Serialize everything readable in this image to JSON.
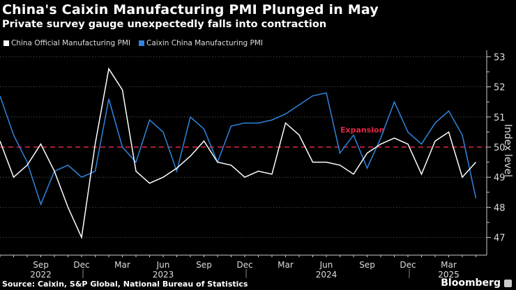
{
  "title": "China's Caixin Manufacturing PMI Plunged in May",
  "subtitle": "Private survey gauge unexpectedly falls into contraction",
  "source": "Source: Caixin, S&P Global, National Bureau of Statistics",
  "brand": "Bloomberg",
  "chart_data": {
    "type": "line",
    "ylabel": "Index level",
    "ylim": [
      47,
      53
    ],
    "yticks": [
      "47",
      "48",
      "49",
      "50",
      "51",
      "52",
      "53"
    ],
    "grid": true,
    "legend_position": "top-left",
    "x": [
      "2022-06",
      "2022-07",
      "2022-08",
      "2022-09",
      "2022-10",
      "2022-11",
      "2022-12",
      "2023-01",
      "2023-02",
      "2023-03",
      "2023-04",
      "2023-05",
      "2023-06",
      "2023-07",
      "2023-08",
      "2023-09",
      "2023-10",
      "2023-11",
      "2023-12",
      "2024-01",
      "2024-02",
      "2024-03",
      "2024-04",
      "2024-05",
      "2024-06",
      "2024-07",
      "2024-08",
      "2024-09",
      "2024-10",
      "2024-11",
      "2024-12",
      "2025-01",
      "2025-02",
      "2025-03",
      "2025-04",
      "2025-05"
    ],
    "xticks": [
      {
        "month": "Sep",
        "year": "2022",
        "index": 3
      },
      {
        "month": "Dec",
        "year": "",
        "index": 6
      },
      {
        "month": "Mar",
        "year": "",
        "index": 9
      },
      {
        "month": "Jun",
        "year": "2023",
        "index": 12
      },
      {
        "month": "Sep",
        "year": "",
        "index": 15
      },
      {
        "month": "Dec",
        "year": "",
        "index": 18
      },
      {
        "month": "Mar",
        "year": "",
        "index": 21
      },
      {
        "month": "Jun",
        "year": "2024",
        "index": 24
      },
      {
        "month": "Sep",
        "year": "",
        "index": 27
      },
      {
        "month": "Dec",
        "year": "",
        "index": 30
      },
      {
        "month": "Mar",
        "year": "2025",
        "index": 33
      }
    ],
    "series": [
      {
        "name": "China Official Manufacturing PMI",
        "color": "#ffffff",
        "values": [
          50.2,
          49.0,
          49.4,
          50.1,
          49.2,
          48.0,
          47.0,
          50.1,
          52.6,
          51.9,
          49.2,
          48.8,
          49.0,
          49.3,
          49.7,
          50.2,
          49.5,
          49.4,
          49.0,
          49.2,
          49.1,
          50.8,
          50.4,
          49.5,
          49.5,
          49.4,
          49.1,
          49.8,
          50.1,
          50.3,
          50.1,
          49.1,
          50.2,
          50.5,
          49.0,
          49.5
        ]
      },
      {
        "name": "Caixin China Manufacturing PMI",
        "color": "#2e86de",
        "values": [
          51.7,
          50.4,
          49.5,
          48.1,
          49.2,
          49.4,
          49.0,
          49.2,
          51.6,
          50.0,
          49.5,
          50.9,
          50.5,
          49.2,
          51.0,
          50.6,
          49.5,
          50.7,
          50.8,
          50.8,
          50.9,
          51.1,
          51.4,
          51.7,
          51.8,
          49.8,
          50.4,
          49.3,
          50.3,
          51.5,
          50.5,
          50.1,
          50.8,
          51.2,
          50.4,
          48.3
        ]
      }
    ],
    "reference_line": {
      "value": 50,
      "label": "Expansion",
      "color": "#e0284a"
    }
  }
}
